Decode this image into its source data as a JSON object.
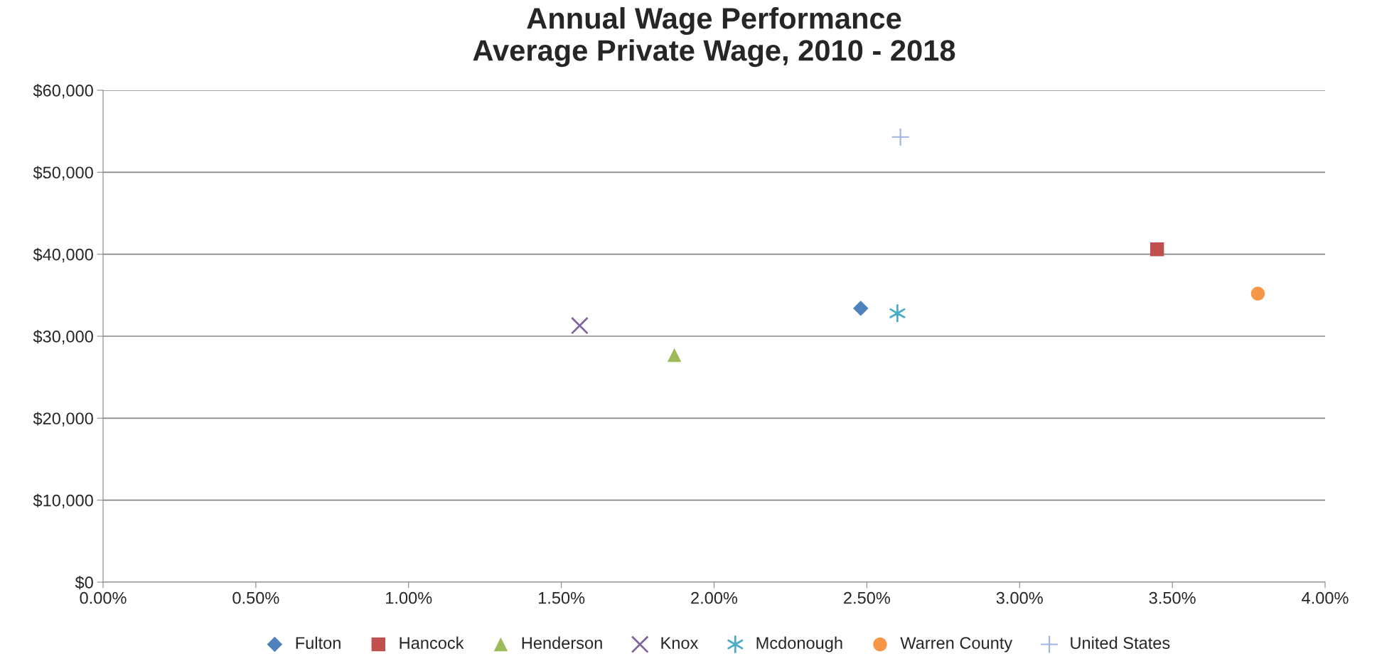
{
  "chart_data": {
    "type": "scatter",
    "title": "Annual Wage Performance\nAverage Private Wage, 2010 - 2018",
    "series": [
      {
        "name": "Fulton",
        "color": "#4f81bd",
        "marker": "diamond",
        "x": [
          2.48
        ],
        "values": [
          33400
        ]
      },
      {
        "name": "Hancock",
        "color": "#c0504d",
        "marker": "square",
        "x": [
          3.45
        ],
        "values": [
          40600
        ]
      },
      {
        "name": "Henderson",
        "color": "#9bbb59",
        "marker": "triangle",
        "x": [
          1.87
        ],
        "values": [
          27700
        ]
      },
      {
        "name": "Knox",
        "color": "#8064a2",
        "marker": "cross",
        "x": [
          1.56
        ],
        "values": [
          31300
        ]
      },
      {
        "name": "Mcdonough",
        "color": "#4bacc6",
        "x": [
          2.6
        ],
        "values": [
          32800
        ]
      },
      {
        "name": "Warren County",
        "color": "#f79646",
        "marker": "circle",
        "x": [
          3.78
        ],
        "values": [
          35200
        ]
      },
      {
        "name": "United States",
        "color": "#9fb4e0",
        "x": [
          2.61
        ],
        "values": [
          54300
        ]
      }
    ],
    "xlim": [
      0,
      4
    ],
    "xticks": [
      {
        "value": 0,
        "label": "0.00%"
      },
      {
        "value": 0.5,
        "label": "0.50%"
      },
      {
        "value": 1,
        "label": "1.00%"
      },
      {
        "value": 1.5,
        "label": "1.50%"
      },
      {
        "value": 2,
        "label": "2.00%"
      },
      {
        "value": 2.5,
        "label": "2.50%"
      },
      {
        "value": 3,
        "label": "3.00%"
      },
      {
        "value": 3.5,
        "label": "3.50%"
      },
      {
        "value": 4,
        "label": "4.00%"
      }
    ],
    "ylim": [
      0,
      60000
    ],
    "yticks": [
      {
        "value": 0,
        "label": "$0"
      },
      {
        "value": 10000,
        "label": "$10,000"
      },
      {
        "value": 20000,
        "label": "$20,000"
      },
      {
        "value": 30000,
        "label": "$30,000"
      },
      {
        "value": 40000,
        "label": "$40,000"
      },
      {
        "value": 50000,
        "label": "$50,000"
      },
      {
        "value": 60000,
        "label": "$60,000"
      }
    ],
    "grid": "y",
    "legend": "bottom"
  }
}
